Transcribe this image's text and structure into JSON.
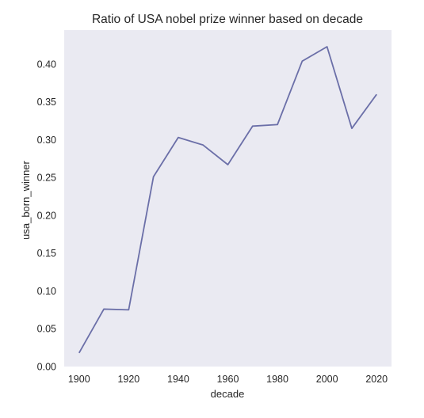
{
  "chart_data": {
    "type": "line",
    "title": "Ratio of USA nobel prize winner based on decade",
    "xlabel": "decade",
    "ylabel": "usa_born_winner",
    "x": [
      1900,
      1910,
      1920,
      1930,
      1940,
      1950,
      1960,
      1970,
      1980,
      1990,
      2000,
      2010,
      2020
    ],
    "series": [
      {
        "values": [
          0.018,
          0.076,
          0.075,
          0.251,
          0.303,
          0.293,
          0.267,
          0.318,
          0.32,
          0.404,
          0.423,
          0.315,
          0.36
        ],
        "color": "#6b6fa8"
      }
    ],
    "xlim": [
      1894,
      2026
    ],
    "ylim": [
      0,
      0.445
    ],
    "x_ticks": [
      1900,
      1920,
      1940,
      1960,
      1980,
      2000,
      2020
    ],
    "x_tick_labels": [
      "1900",
      "1920",
      "1940",
      "1960",
      "1980",
      "2000",
      "2020"
    ],
    "y_ticks": [
      0,
      0.05,
      0.1,
      0.15,
      0.2,
      0.25,
      0.3,
      0.35,
      0.4
    ],
    "y_tick_labels": [
      "0.00",
      "0.05",
      "0.10",
      "0.15",
      "0.20",
      "0.25",
      "0.30",
      "0.35",
      "0.40"
    ],
    "grid": false,
    "plot_background": "#eaeaf2"
  }
}
